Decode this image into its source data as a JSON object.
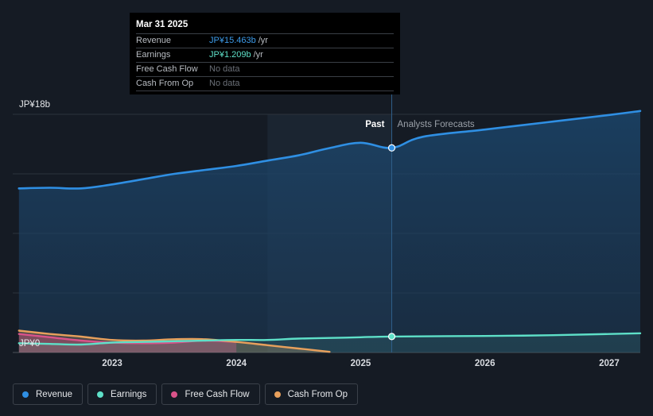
{
  "tooltip": {
    "date": "Mar 31 2025",
    "rows": [
      {
        "label": "Revenue",
        "value": "JP¥15.463b",
        "unit": "/yr",
        "color": "#3d9be9"
      },
      {
        "label": "Earnings",
        "value": "JP¥1.209b",
        "unit": "/yr",
        "color": "#5ee0c8"
      },
      {
        "label": "Free Cash Flow",
        "value": "No data",
        "unit": "",
        "color": null
      },
      {
        "label": "Cash From Op",
        "value": "No data",
        "unit": "",
        "color": null
      }
    ]
  },
  "labels": {
    "past": "Past",
    "forecast": "Analysts Forecasts"
  },
  "legend": [
    {
      "label": "Revenue",
      "color": "#2f8fe3"
    },
    {
      "label": "Earnings",
      "color": "#5ee0c8"
    },
    {
      "label": "Free Cash Flow",
      "color": "#d9538a"
    },
    {
      "label": "Cash From Op",
      "color": "#e8a05c"
    }
  ],
  "chart_data": {
    "type": "area",
    "xlabel": "",
    "ylabel": "",
    "y_tick_labels": [
      "JP¥18b",
      "JP¥0"
    ],
    "ylim": [
      0,
      18
    ],
    "xlim": [
      2022.2,
      2027.25
    ],
    "x_tick_labels": [
      "2023",
      "2024",
      "2025",
      "2026",
      "2027"
    ],
    "x_ticks": [
      2023,
      2024,
      2025,
      2026,
      2027
    ],
    "forecast_start": 2025.25,
    "highlight_range": [
      2024.25,
      2025.25
    ],
    "grid": true,
    "series": [
      {
        "name": "Revenue",
        "color": "#2f8fe3",
        "points": [
          [
            2022.25,
            12.4
          ],
          [
            2022.5,
            12.45
          ],
          [
            2022.75,
            12.4
          ],
          [
            2023.0,
            12.7
          ],
          [
            2023.25,
            13.1
          ],
          [
            2023.5,
            13.5
          ],
          [
            2023.75,
            13.8
          ],
          [
            2024.0,
            14.1
          ],
          [
            2024.25,
            14.5
          ],
          [
            2024.5,
            14.9
          ],
          [
            2024.75,
            15.45
          ],
          [
            2025.0,
            15.85
          ],
          [
            2025.25,
            15.463
          ],
          [
            2025.5,
            16.3
          ],
          [
            2026.0,
            16.85
          ],
          [
            2026.5,
            17.4
          ],
          [
            2027.0,
            17.95
          ],
          [
            2027.25,
            18.25
          ]
        ]
      },
      {
        "name": "Earnings",
        "color": "#5ee0c8",
        "points": [
          [
            2022.25,
            0.7
          ],
          [
            2022.5,
            0.65
          ],
          [
            2022.75,
            0.6
          ],
          [
            2023.0,
            0.75
          ],
          [
            2023.25,
            0.8
          ],
          [
            2023.5,
            0.85
          ],
          [
            2023.75,
            0.9
          ],
          [
            2024.0,
            0.95
          ],
          [
            2024.25,
            0.95
          ],
          [
            2024.5,
            1.05
          ],
          [
            2024.75,
            1.1
          ],
          [
            2025.0,
            1.15
          ],
          [
            2025.25,
            1.209
          ],
          [
            2026.0,
            1.25
          ],
          [
            2026.5,
            1.3
          ],
          [
            2027.0,
            1.4
          ],
          [
            2027.25,
            1.45
          ]
        ]
      },
      {
        "name": "Free Cash Flow",
        "color": "#d9538a",
        "points": [
          [
            2022.25,
            1.4
          ],
          [
            2022.5,
            1.15
          ],
          [
            2022.75,
            0.9
          ],
          [
            2023.0,
            0.75
          ],
          [
            2023.25,
            0.7
          ],
          [
            2023.5,
            0.75
          ],
          [
            2023.75,
            0.9
          ],
          [
            2024.0,
            0.8
          ]
        ]
      },
      {
        "name": "Cash From Op",
        "color": "#e8a05c",
        "points": [
          [
            2022.25,
            1.65
          ],
          [
            2022.5,
            1.4
          ],
          [
            2022.75,
            1.2
          ],
          [
            2023.0,
            0.95
          ],
          [
            2023.25,
            0.9
          ],
          [
            2023.5,
            1.0
          ],
          [
            2023.75,
            1.0
          ],
          [
            2024.0,
            0.8
          ],
          [
            2024.25,
            0.55
          ],
          [
            2024.5,
            0.3
          ],
          [
            2024.75,
            0.05
          ]
        ]
      }
    ]
  }
}
